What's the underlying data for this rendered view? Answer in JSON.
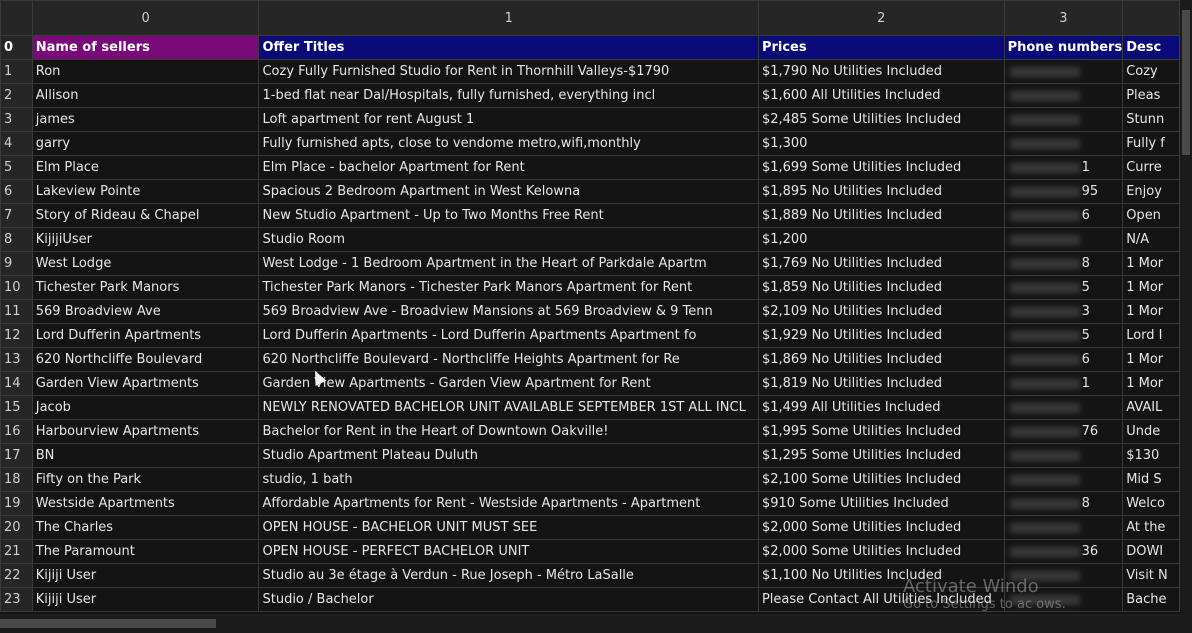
{
  "columns": [
    "0",
    "1",
    "2",
    "3"
  ],
  "header_row": {
    "index": "0",
    "cells": [
      "Name of sellers",
      "Offer Titles",
      "Prices",
      "Phone numbers",
      "Desc"
    ]
  },
  "rows": [
    {
      "index": "1",
      "seller": "Ron",
      "title": "Cozy Fully Furnished Studio for Rent in Thornhill Valleys-$1790",
      "price": "$1,790 No Utilities Included",
      "phone": "",
      "desc": "Cozy"
    },
    {
      "index": "2",
      "seller": "Allison",
      "title": "1-bed flat near Dal/Hospitals, fully furnished, everything incl",
      "price": "$1,600 All Utilities Included",
      "phone": "",
      "desc": "Pleas"
    },
    {
      "index": "3",
      "seller": "james",
      "title": "Loft apartment for rent August 1",
      "price": "$2,485 Some Utilities Included",
      "phone": "",
      "desc": "Stunn"
    },
    {
      "index": "4",
      "seller": "garry",
      "title": "Fully furnished apts, close to vendome metro,wifi,monthly",
      "price": "$1,300",
      "phone": "",
      "desc": "Fully f"
    },
    {
      "index": "5",
      "seller": "Elm Place",
      "title": "Elm Place - bachelor Apartment for Rent",
      "price": "$1,699 Some Utilities Included",
      "phone": "1",
      "desc": "Curre"
    },
    {
      "index": "6",
      "seller": "Lakeview Pointe",
      "title": "Spacious 2 Bedroom Apartment in West Kelowna",
      "price": "$1,895 No Utilities Included",
      "phone": "95",
      "desc": "Enjoy"
    },
    {
      "index": "7",
      "seller": "Story of Rideau & Chapel",
      "title": "New Studio Apartment - Up to Two Months Free Rent",
      "price": "$1,889 No Utilities Included",
      "phone": "6",
      "desc": "Open"
    },
    {
      "index": "8",
      "seller": "KijijiUser",
      "title": "Studio Room",
      "price": "$1,200",
      "phone": "",
      "desc": "N/A"
    },
    {
      "index": "9",
      "seller": "West Lodge",
      "title": "West Lodge - 1 Bedroom Apartment in the Heart of Parkdale Apartm",
      "price": "$1,769 No Utilities Included",
      "phone": "8",
      "desc": "1 Mor"
    },
    {
      "index": "10",
      "seller": "Tichester Park Manors",
      "title": "Tichester Park Manors - Tichester Park Manors Apartment for Rent",
      "price": "$1,859 No Utilities Included",
      "phone": "5",
      "desc": "1 Mor"
    },
    {
      "index": "11",
      "seller": "569 Broadview Ave",
      "title": "569 Broadview Ave - Broadview Mansions at 569 Broadview & 9 Tenn",
      "price": "$2,109 No Utilities Included",
      "phone": "3",
      "desc": "1 Mor"
    },
    {
      "index": "12",
      "seller": "Lord Dufferin Apartments",
      "title": "Lord Dufferin Apartments - Lord Dufferin Apartments Apartment fo",
      "price": "$1,929 No Utilities Included",
      "phone": "5",
      "desc": "Lord I"
    },
    {
      "index": "13",
      "seller": "620 Northcliffe Boulevard",
      "title": "620 Northcliffe Boulevard - Northcliffe Heights Apartment for Re",
      "price": "$1,869 No Utilities Included",
      "phone": "6",
      "desc": "1 Mor"
    },
    {
      "index": "14",
      "seller": "Garden View Apartments",
      "title": "Garden View Apartments - Garden View Apartment for Rent",
      "price": "$1,819 No Utilities Included",
      "phone": "1",
      "desc": "1 Mor"
    },
    {
      "index": "15",
      "seller": "Jacob",
      "title": "NEWLY RENOVATED BACHELOR UNIT AVAILABLE SEPTEMBER 1ST ALL INCL",
      "price": "$1,499 All Utilities Included",
      "phone": "",
      "desc": "AVAIL"
    },
    {
      "index": "16",
      "seller": "Harbourview Apartments",
      "title": "Bachelor for Rent in the Heart of Downtown Oakville!",
      "price": "$1,995 Some Utilities Included",
      "phone": "76",
      "desc": "Unde"
    },
    {
      "index": "17",
      "seller": "BN",
      "title": "Studio Apartment Plateau Duluth",
      "price": "$1,295 Some Utilities Included",
      "phone": "",
      "desc": "$130"
    },
    {
      "index": "18",
      "seller": "Fifty on the Park",
      "title": "studio, 1 bath",
      "price": "$2,100 Some Utilities Included",
      "phone": "",
      "desc": "Mid S"
    },
    {
      "index": "19",
      "seller": "Westside Apartments",
      "title": "Affordable Apartments for Rent - Westside Apartments - Apartment",
      "price": "$910 Some Utilities Included",
      "phone": "8",
      "desc": "Welco"
    },
    {
      "index": "20",
      "seller": "The Charles",
      "title": "OPEN HOUSE - BACHELOR UNIT MUST SEE",
      "price": "$2,000 Some Utilities Included",
      "phone": "",
      "desc": "At the"
    },
    {
      "index": "21",
      "seller": "The Paramount",
      "title": "OPEN HOUSE - PERFECT BACHELOR UNIT",
      "price": "$2,000 Some Utilities Included",
      "phone": "36",
      "desc": "DOWI"
    },
    {
      "index": "22",
      "seller": "Kijiji User",
      "title": "Studio au 3e étage à Verdun - Rue Joseph - Métro LaSalle",
      "price": "$1,100 No Utilities Included",
      "phone": "",
      "desc": "Visit N"
    },
    {
      "index": "23",
      "seller": "Kijiji User",
      "title": "Studio / Bachelor",
      "price": "Please Contact All Utilities Included",
      "phone": "",
      "desc": "Bache"
    }
  ],
  "watermark": {
    "title": "Activate Windo",
    "subtitle": "Go to Settings to ac        ows."
  },
  "colors": {
    "background": "#141414",
    "header_purple": "#7a0a7a",
    "header_blue": "#0a0a78",
    "grid_line": "#3a3a3a"
  }
}
